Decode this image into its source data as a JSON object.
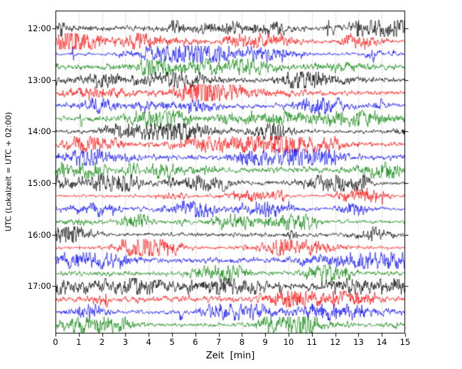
{
  "chart_data": {
    "type": "line",
    "title": "",
    "xlabel": "Zeit  [min]",
    "ylabel": "UTC (Lokalzeit = UTC + 02:00)",
    "xlim": [
      0,
      15
    ],
    "x_ticks": [
      "0",
      "1",
      "2",
      "3",
      "4",
      "5",
      "6",
      "7",
      "8",
      "9",
      "10",
      "11",
      "12",
      "13",
      "14",
      "15"
    ],
    "y_tick_labels": [
      "12:00",
      "13:00",
      "14:00",
      "15:00",
      "16:00",
      "17:00"
    ],
    "minutes_per_trace": 15,
    "traces_per_hour": 4,
    "grid": "vertical dotted line at every minute",
    "legend": "none",
    "trace_color_cycle": [
      "#000000",
      "#ff0000",
      "#0000ff",
      "#008000"
    ],
    "traces": [
      {
        "start": "12:00",
        "color": "#000000"
      },
      {
        "start": "12:15",
        "color": "#ff0000"
      },
      {
        "start": "12:30",
        "color": "#0000ff"
      },
      {
        "start": "12:45",
        "color": "#008000"
      },
      {
        "start": "13:00",
        "color": "#000000"
      },
      {
        "start": "13:15",
        "color": "#ff0000"
      },
      {
        "start": "13:30",
        "color": "#0000ff"
      },
      {
        "start": "13:45",
        "color": "#008000"
      },
      {
        "start": "14:00",
        "color": "#000000"
      },
      {
        "start": "14:15",
        "color": "#ff0000"
      },
      {
        "start": "14:30",
        "color": "#0000ff"
      },
      {
        "start": "14:45",
        "color": "#008000"
      },
      {
        "start": "15:00",
        "color": "#000000"
      },
      {
        "start": "15:15",
        "color": "#ff0000"
      },
      {
        "start": "15:30",
        "color": "#0000ff"
      },
      {
        "start": "15:45",
        "color": "#008000"
      },
      {
        "start": "16:00",
        "color": "#000000"
      },
      {
        "start": "16:15",
        "color": "#ff0000"
      },
      {
        "start": "16:30",
        "color": "#0000ff"
      },
      {
        "start": "16:45",
        "color": "#008000"
      },
      {
        "start": "17:00",
        "color": "#000000"
      },
      {
        "start": "17:15",
        "color": "#ff0000"
      },
      {
        "start": "17:30",
        "color": "#0000ff"
      },
      {
        "start": "17:45",
        "color": "#008000"
      }
    ],
    "frame_color": "#000000",
    "background_color": "#ffffff",
    "gridline_color": "#888888"
  }
}
